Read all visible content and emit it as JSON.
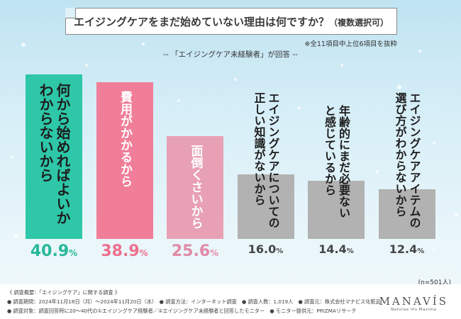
{
  "header": {
    "title_main": "エイジングケアをまだ始めていない理由は何ですか？",
    "title_paren": "（複数選択可）",
    "note": "※全11項目中上位6項目を抜粋",
    "respondents": "-- 「エイジングケア未経験者」が回答 --"
  },
  "chart_data": {
    "type": "bar",
    "title": "エイジングケアをまだ始めていない理由は何ですか？（複数選択可）",
    "categories": [
      "何から始めればよいか\nわからないから",
      "費用がかかるから",
      "面倒くさいから",
      "エイジングケアについての\n正しい知識がないから",
      "年齢的にまだ必要ない\nと感じているから",
      "エイジングケアアイテムの\n選び方がわからないから"
    ],
    "values": [
      40.9,
      38.9,
      25.6,
      16.0,
      14.4,
      12.4
    ],
    "value_labels": [
      "40.9",
      "38.9",
      "25.6",
      "16.0",
      "14.4",
      "12.4"
    ],
    "unit": "%",
    "colors": [
      "#2ec7a8",
      "#f07e99",
      "#e8a0b4",
      "#b2b2b2",
      "#b2b2b2",
      "#b2b2b2"
    ],
    "label_colors": [
      "#1d1d1d",
      "#ffffff",
      "#ffffff",
      "#1d1d1d",
      "#1d1d1d",
      "#1d1d1d"
    ],
    "value_colors": [
      "#27b89a",
      "#ee6f8d",
      "#e08aa6",
      "#444444",
      "#444444",
      "#444444"
    ],
    "ylim": [
      0,
      42
    ],
    "xlabel": "",
    "ylabel": ""
  },
  "sample_size": "(n=501人)",
  "footer": {
    "line1": "《 調査概要：「エイジングケア」に関する調査 》",
    "line2": "● 調査期間：2024年11月18日（月）～2024年11月20日（水）　● 調査方法：インターネット調査　● 調査人数：1,019人　● 調査元：株式会社マナビス化粧品",
    "line3": "● 調査対象：調査回答時に20～40代の①エイジングケア経験者／②エイジングケア未経験者と回答したモニター　● モニター提供元：PRIZMAリサーチ"
  },
  "logo": {
    "name": "MANAVÍS",
    "sub": "Naturae Vis Maxima"
  }
}
